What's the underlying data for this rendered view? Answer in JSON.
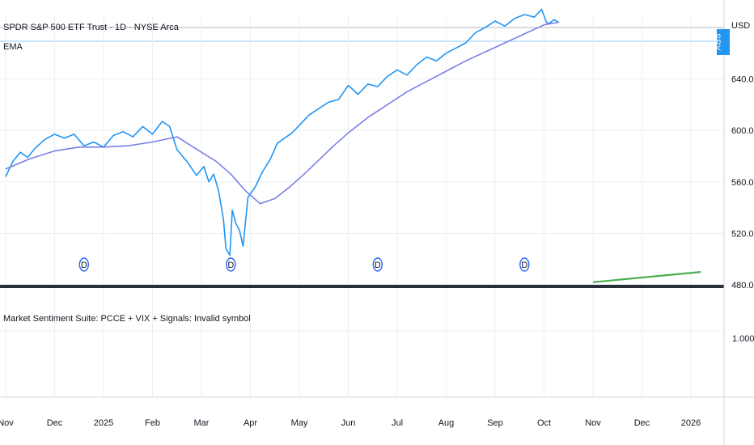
{
  "header": {
    "symbol_title": "SPDR S&P 500 ETF Trust · 1D · NYSE Arca",
    "indicator_label": "EMA",
    "currency": "USD",
    "price_tag": "SPY"
  },
  "lower_pane": {
    "title": "Market Sentiment Suite: PCCE + VIX + Signals: Invalid symbol",
    "ytick": "1.0000"
  },
  "colors": {
    "price": "#2196f3",
    "ema": "#7b7fe6",
    "projection": "#4caf50",
    "grid": "#eceff3",
    "divider": "#2a2e39"
  },
  "chart_data": {
    "type": "line",
    "x_axis_labels": [
      "Nov",
      "Dec",
      "2025",
      "Feb",
      "Mar",
      "Apr",
      "May",
      "Jun",
      "Jul",
      "Aug",
      "Sep",
      "Oct",
      "Nov",
      "Dec",
      "2026"
    ],
    "y_ticks": [
      "480.00",
      "520.00",
      "560.00",
      "600.00",
      "640.00"
    ],
    "ylim": [
      480,
      690
    ],
    "dividend_marker": "D",
    "dividend_months": [
      1.6,
      4.6,
      7.6,
      10.6
    ],
    "series": [
      {
        "key": "price",
        "x": [
          0.0,
          0.15,
          0.3,
          0.45,
          0.6,
          0.8,
          1.0,
          1.2,
          1.4,
          1.6,
          1.8,
          2.0,
          2.2,
          2.4,
          2.6,
          2.8,
          3.0,
          3.2,
          3.35,
          3.5,
          3.7,
          3.9,
          4.05,
          4.15,
          4.25,
          4.35,
          4.45,
          4.5,
          4.58,
          4.63,
          4.7,
          4.78,
          4.85,
          4.95,
          5.1,
          5.25,
          5.4,
          5.55,
          5.7,
          5.85,
          6.0,
          6.2,
          6.4,
          6.6,
          6.8,
          7.0,
          7.2,
          7.4,
          7.6,
          7.8,
          8.0,
          8.2,
          8.4,
          8.6,
          8.8,
          9.0,
          9.2,
          9.4,
          9.6,
          9.8,
          10.0,
          10.2,
          10.4,
          10.6,
          10.8,
          10.95,
          11.05,
          11.1,
          11.2,
          11.3
        ],
        "y": [
          564,
          576,
          583,
          579,
          586,
          593,
          597,
          594,
          597,
          588,
          591,
          587,
          596,
          599,
          595,
          603,
          597,
          607,
          603,
          585,
          576,
          565,
          572,
          560,
          566,
          553,
          531,
          508,
          503,
          538,
          528,
          522,
          510,
          548,
          556,
          568,
          577,
          590,
          594,
          598,
          604,
          612,
          617,
          622,
          624,
          635,
          628,
          636,
          634,
          642,
          647,
          643,
          651,
          657,
          654,
          660,
          664,
          668,
          676,
          680,
          685,
          681,
          687,
          690,
          688,
          694,
          684,
          683,
          686,
          684
        ]
      },
      {
        "key": "ema",
        "x": [
          0.0,
          0.5,
          1.0,
          1.5,
          2.0,
          2.5,
          3.0,
          3.5,
          4.0,
          4.3,
          4.6,
          4.9,
          5.2,
          5.5,
          5.8,
          6.1,
          6.4,
          6.7,
          7.0,
          7.4,
          7.8,
          8.2,
          8.6,
          9.0,
          9.4,
          9.8,
          10.2,
          10.6,
          11.0,
          11.3
        ],
        "y": [
          570,
          578,
          584,
          587,
          587,
          588,
          591,
          595,
          583,
          576,
          566,
          553,
          543,
          547,
          556,
          566,
          577,
          588,
          598,
          610,
          620,
          630,
          638,
          646,
          654,
          661,
          668,
          675,
          682,
          684
        ]
      },
      {
        "key": "projection",
        "x": [
          12.0,
          14.2
        ],
        "y": [
          482,
          490
        ]
      }
    ]
  }
}
